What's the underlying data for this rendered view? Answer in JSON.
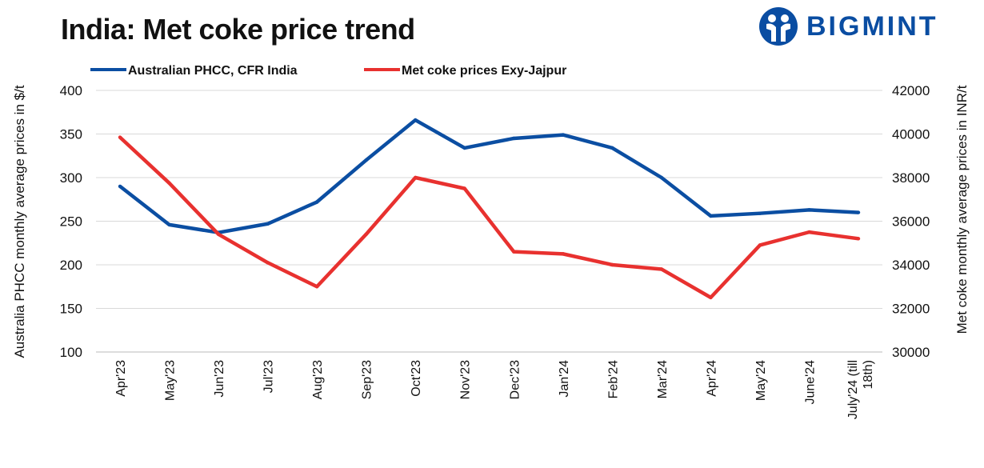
{
  "chart_data": {
    "type": "line",
    "title": "India: Met coke price trend",
    "categories": [
      "Apr'23",
      "May'23",
      "Jun'23",
      "Jul'23",
      "Aug'23",
      "Sep'23",
      "Oct'23",
      "Nov'23",
      "Dec'23",
      "Jan'24",
      "Feb'24",
      "Mar'24",
      "Apr'24",
      "May'24",
      "June'24",
      "July'24 (till 18th)"
    ],
    "series": [
      {
        "name": "Australian PHCC, CFR India",
        "axis": "left",
        "color": "#0b4ea2",
        "values": [
          290,
          246,
          237,
          247,
          272,
          320,
          366,
          334,
          345,
          349,
          334,
          300,
          256,
          259,
          263,
          260
        ]
      },
      {
        "name": "Met coke prices Exy-Jajpur",
        "axis": "right",
        "color": "#e8312f",
        "values": [
          39850,
          37750,
          35400,
          34100,
          33000,
          35400,
          38000,
          37500,
          34600,
          34500,
          34000,
          33800,
          32500,
          34900,
          35500,
          35200
        ]
      }
    ],
    "ylabel": "Australia PHCC monthly average prices in $/t",
    "ylabel_right": "Met coke monthly average prices in INR/t",
    "ylim": [
      100,
      400
    ],
    "yticks": [
      "100",
      "150",
      "200",
      "250",
      "300",
      "350",
      "400"
    ],
    "ylim_right": [
      30000,
      42000
    ],
    "yticks_right": [
      "30000",
      "32000",
      "34000",
      "36000",
      "38000",
      "40000",
      "42000"
    ],
    "grid": true,
    "legend": "top"
  },
  "logo": {
    "text": "BIGMINT"
  }
}
